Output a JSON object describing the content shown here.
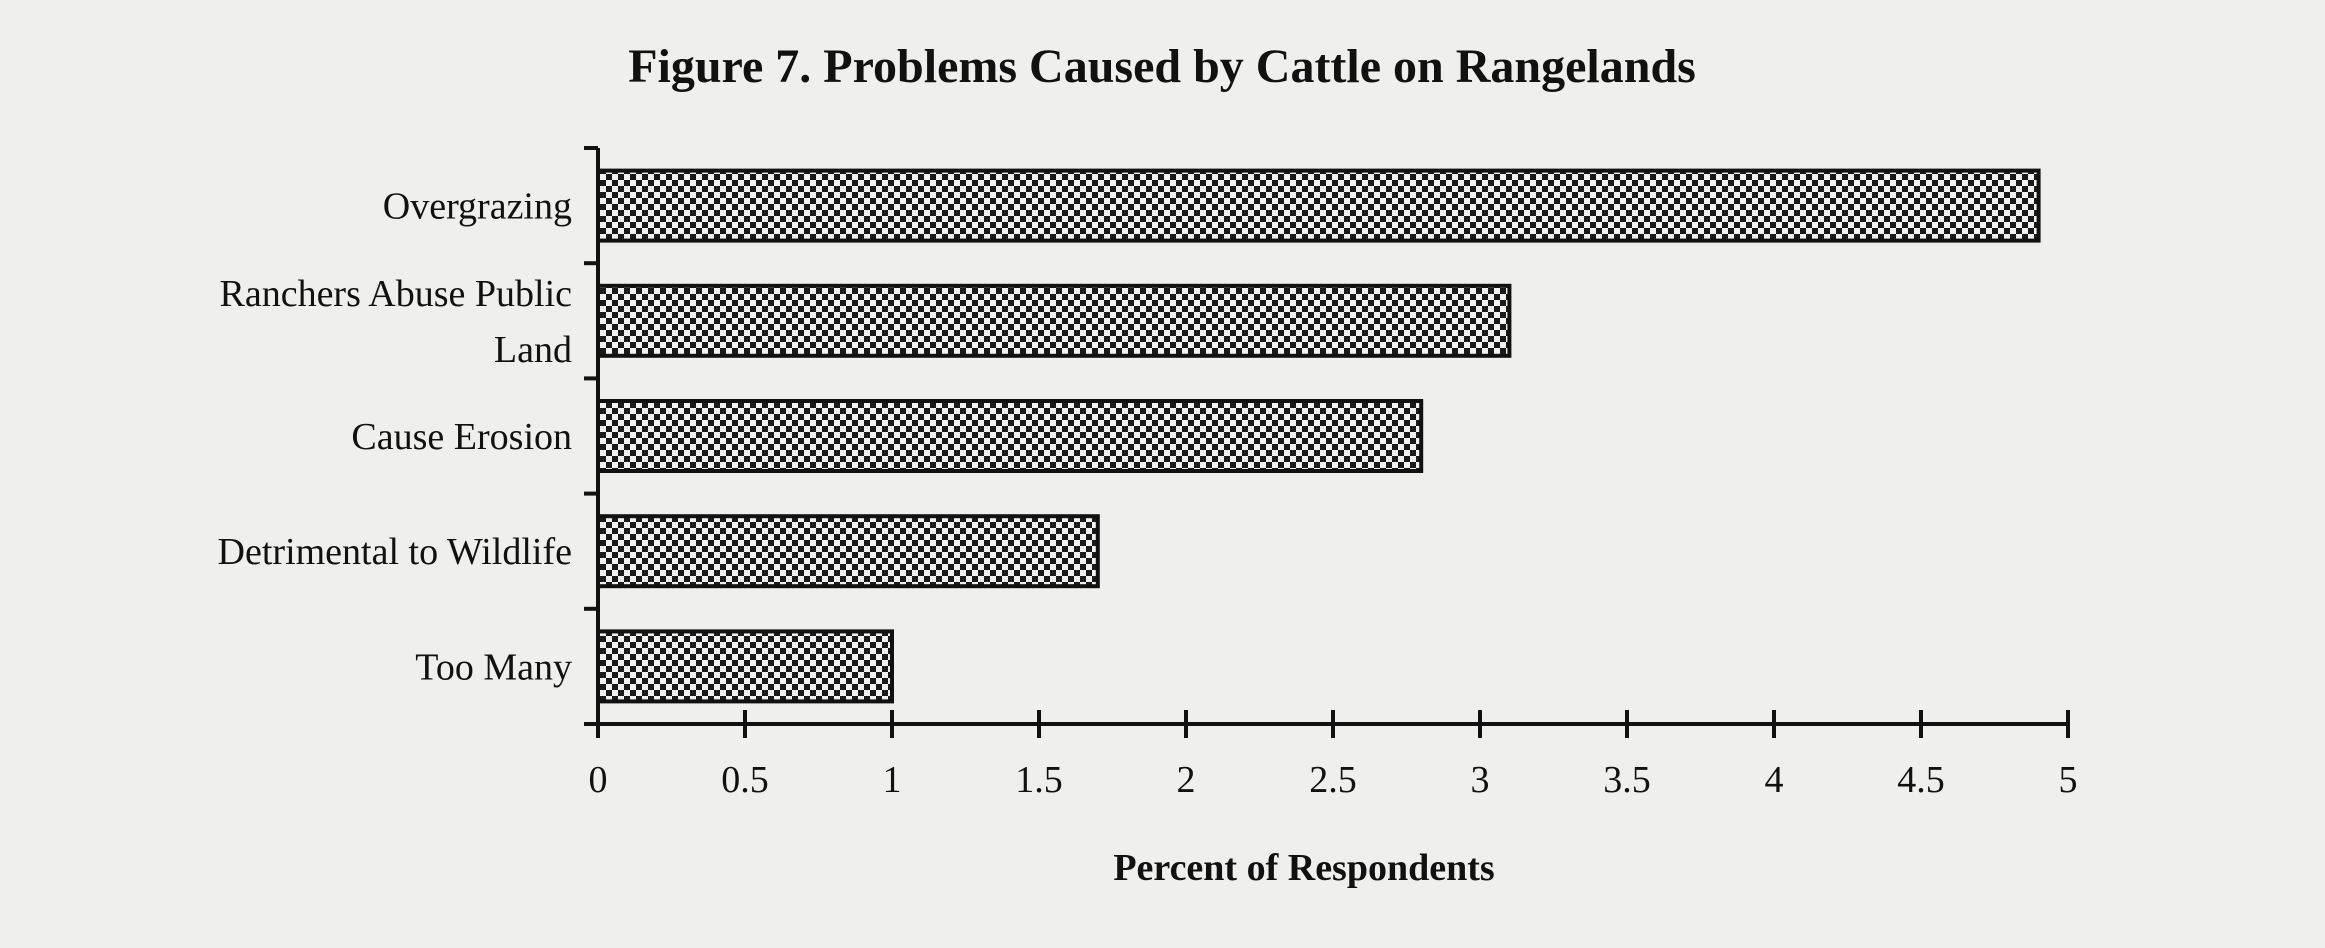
{
  "chart_data": {
    "type": "bar",
    "orientation": "horizontal",
    "title": "Figure 7. Problems Caused by Cattle on Rangelands",
    "xlabel": "Percent of Respondents",
    "ylabel": "",
    "categories": [
      [
        "Overgrazing"
      ],
      [
        "Ranchers Abuse Public",
        "Land"
      ],
      [
        "Cause Erosion"
      ],
      [
        "Detrimental to Wildlife"
      ],
      [
        "Too Many"
      ]
    ],
    "values": [
      4.9,
      3.1,
      2.8,
      1.7,
      1.0
    ],
    "xlim": [
      0,
      5
    ],
    "xticks": [
      "0",
      "0.5",
      "1",
      "1.5",
      "2",
      "2.5",
      "3",
      "3.5",
      "4",
      "4.5",
      "5"
    ],
    "grid": false,
    "legend": "none",
    "colors": {
      "ink": "#111111",
      "background": "#efefed",
      "bar_fill": "checkerboard"
    }
  }
}
